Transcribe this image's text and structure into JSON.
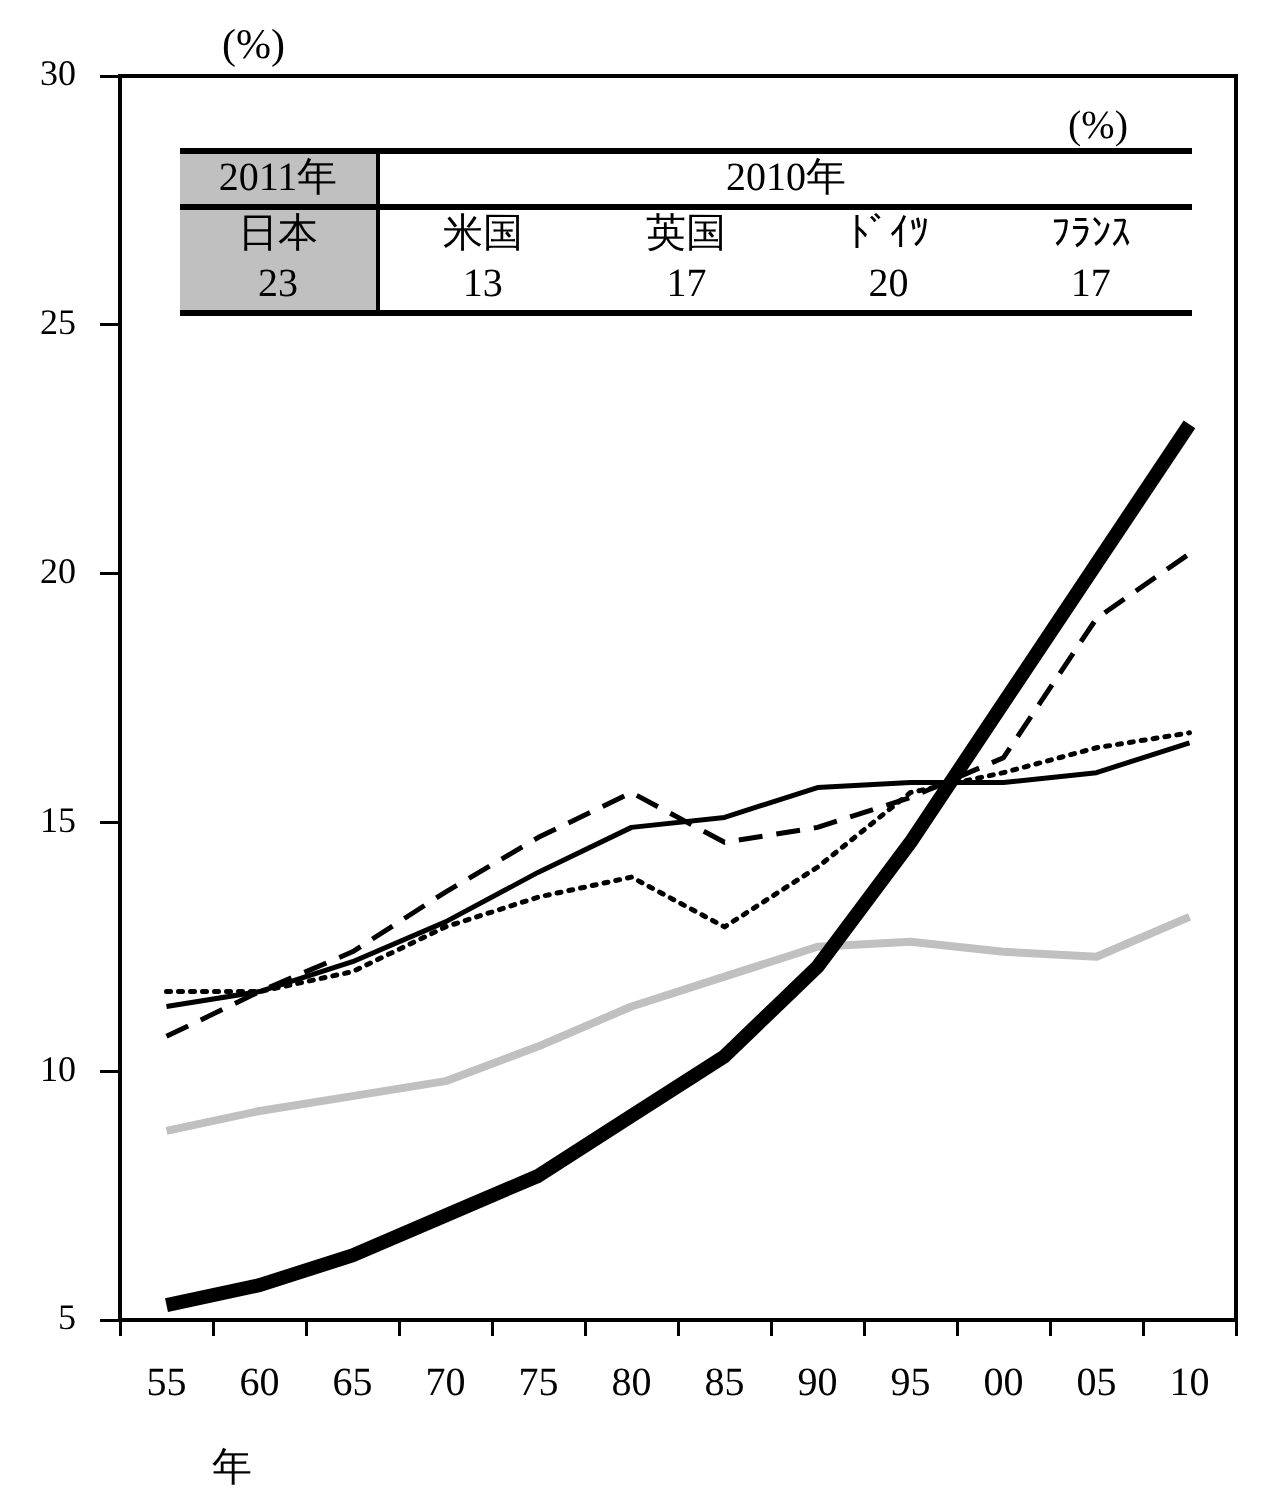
{
  "chart_data": {
    "type": "line",
    "ylabel": "(%)",
    "xlabel": "年",
    "categories": [
      "55",
      "60",
      "65",
      "70",
      "75",
      "80",
      "85",
      "90",
      "95",
      "00",
      "05",
      "10"
    ],
    "series": [
      {
        "color": "#000000",
        "line_style": "solid",
        "values": [
          5.3,
          5.7,
          6.3,
          7.1,
          7.9,
          9.1,
          10.3,
          12.1,
          14.6,
          17.4,
          20.2,
          23.0
        ]
      },
      {
        "color": "#c0c0c0",
        "line_style": "solid",
        "values": [
          8.8,
          9.2,
          9.5,
          9.8,
          10.5,
          11.3,
          11.9,
          12.5,
          12.6,
          12.4,
          12.3,
          13.1
        ]
      },
      {
        "color": "#000000",
        "line_style": "dotted",
        "values": [
          11.6,
          11.6,
          12.0,
          12.9,
          13.5,
          13.9,
          12.9,
          14.1,
          15.6,
          16.0,
          16.5,
          16.8
        ]
      },
      {
        "color": "#000000",
        "line_style": "dashed",
        "values": [
          10.7,
          11.6,
          12.4,
          13.6,
          14.7,
          15.6,
          14.6,
          14.9,
          15.5,
          16.3,
          19.1,
          20.4
        ]
      },
      {
        "color": "#000000",
        "line_style": "solid",
        "values": [
          11.3,
          11.6,
          12.2,
          13.0,
          14.0,
          14.9,
          15.1,
          15.7,
          15.8,
          15.8,
          16.0,
          16.6
        ]
      }
    ],
    "ylim": [
      5,
      30
    ],
    "yticks": [
      5,
      10,
      15,
      20,
      25,
      30
    ],
    "grid": false,
    "legend": false,
    "marker": "none",
    "annotations": [
      "(%)",
      "2011年",
      "2010年",
      "日本",
      "米国",
      "英国",
      "ﾄﾞｲﾂ",
      "ﾌﾗﾝｽ",
      "23",
      "13",
      "17",
      "20",
      "17"
    ]
  }
}
